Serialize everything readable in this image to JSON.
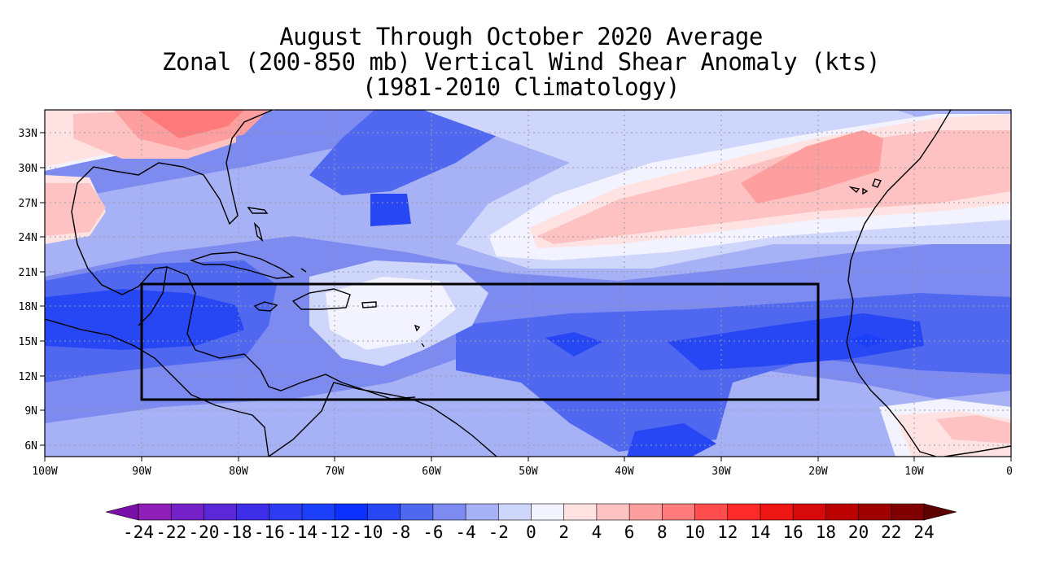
{
  "title_lines": [
    "August Through October 2020 Average",
    "Zonal (200-850 mb) Vertical Wind Shear Anomaly (kts)",
    "(1981-2010 Climatology)"
  ],
  "map": {
    "lon_range": [
      -100,
      0
    ],
    "lat_range": [
      5,
      35
    ],
    "lon_ticks": [
      "100W",
      "90W",
      "80W",
      "70W",
      "60W",
      "50W",
      "40W",
      "30W",
      "20W",
      "10W",
      "0"
    ],
    "lat_ticks": [
      "33N",
      "30N",
      "27N",
      "24N",
      "21N",
      "18N",
      "15N",
      "12N",
      "9N",
      "6N"
    ],
    "highlight_box": {
      "lon": [
        -90,
        -20
      ],
      "lat": [
        10,
        20
      ]
    },
    "grid": "dotted"
  },
  "colorbar": {
    "labels": [
      "-24",
      "-22",
      "-20",
      "-18",
      "-16",
      "-14",
      "-12",
      "-10",
      "-8",
      "-6",
      "-4",
      "-2",
      "0",
      "2",
      "4",
      "6",
      "8",
      "10",
      "12",
      "14",
      "16",
      "18",
      "20",
      "22",
      "24"
    ],
    "colors": [
      "#8f1fb8",
      "#7422c8",
      "#5a28d8",
      "#3f2ee8",
      "#2d3bf2",
      "#1c40fa",
      "#0b30ff",
      "#2747f5",
      "#4f68ef",
      "#7d8bf0",
      "#a7b1f5",
      "#cfd6fb",
      "#f2f3ff",
      "#ffe2e2",
      "#ffc2c2",
      "#ff9e9e",
      "#ff7a7a",
      "#ff4d4d",
      "#ff2a2a",
      "#ee1515",
      "#d60a0a",
      "#bb0000",
      "#9e0000",
      "#800000"
    ],
    "extend": "both"
  }
}
